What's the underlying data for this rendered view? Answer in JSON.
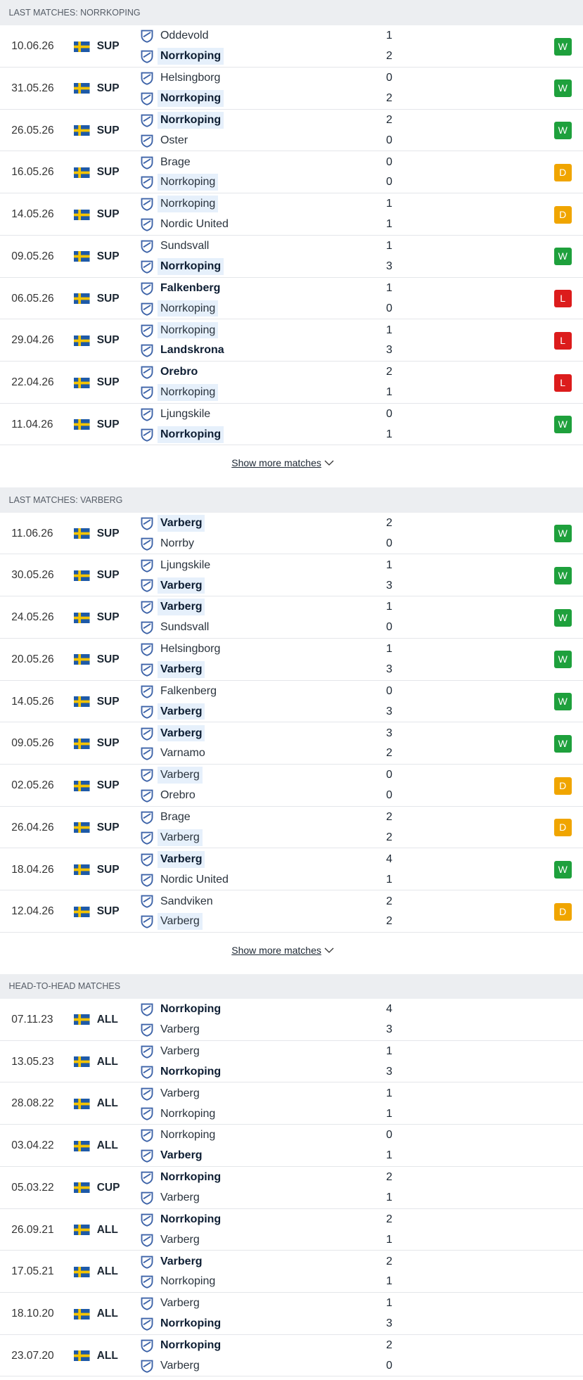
{
  "result_colors": {
    "W": "#1ea03c",
    "D": "#f0a500",
    "L": "#dc1c1c"
  },
  "sections": [
    {
      "title": "LAST MATCHES: NORRKOPING",
      "show_more": "Show more matches",
      "matches": [
        {
          "date": "10.06.26",
          "league": "SUP",
          "home": "Oddevold",
          "away": "Norrkoping",
          "home_score": 1,
          "away_score": 2,
          "result": "W",
          "highlight": "away"
        },
        {
          "date": "31.05.26",
          "league": "SUP",
          "home": "Helsingborg",
          "away": "Norrkoping",
          "home_score": 0,
          "away_score": 2,
          "result": "W",
          "highlight": "away"
        },
        {
          "date": "26.05.26",
          "league": "SUP",
          "home": "Norrkoping",
          "away": "Oster",
          "home_score": 2,
          "away_score": 0,
          "result": "W",
          "highlight": "home"
        },
        {
          "date": "16.05.26",
          "league": "SUP",
          "home": "Brage",
          "away": "Norrkoping",
          "home_score": 0,
          "away_score": 0,
          "result": "D",
          "highlight": "away"
        },
        {
          "date": "14.05.26",
          "league": "SUP",
          "home": "Norrkoping",
          "away": "Nordic United",
          "home_score": 1,
          "away_score": 1,
          "result": "D",
          "highlight": "home"
        },
        {
          "date": "09.05.26",
          "league": "SUP",
          "home": "Sundsvall",
          "away": "Norrkoping",
          "home_score": 1,
          "away_score": 3,
          "result": "W",
          "highlight": "away"
        },
        {
          "date": "06.05.26",
          "league": "SUP",
          "home": "Falkenberg",
          "away": "Norrkoping",
          "home_score": 1,
          "away_score": 0,
          "result": "L",
          "highlight": "away"
        },
        {
          "date": "29.04.26",
          "league": "SUP",
          "home": "Norrkoping",
          "away": "Landskrona",
          "home_score": 1,
          "away_score": 3,
          "result": "L",
          "highlight": "home"
        },
        {
          "date": "22.04.26",
          "league": "SUP",
          "home": "Orebro",
          "away": "Norrkoping",
          "home_score": 2,
          "away_score": 1,
          "result": "L",
          "highlight": "away"
        },
        {
          "date": "11.04.26",
          "league": "SUP",
          "home": "Ljungskile",
          "away": "Norrkoping",
          "home_score": 0,
          "away_score": 1,
          "result": "W",
          "highlight": "away"
        }
      ]
    },
    {
      "title": "LAST MATCHES: VARBERG",
      "show_more": "Show more matches",
      "matches": [
        {
          "date": "11.06.26",
          "league": "SUP",
          "home": "Varberg",
          "away": "Norrby",
          "home_score": 2,
          "away_score": 0,
          "result": "W",
          "highlight": "home"
        },
        {
          "date": "30.05.26",
          "league": "SUP",
          "home": "Ljungskile",
          "away": "Varberg",
          "home_score": 1,
          "away_score": 3,
          "result": "W",
          "highlight": "away"
        },
        {
          "date": "24.05.26",
          "league": "SUP",
          "home": "Varberg",
          "away": "Sundsvall",
          "home_score": 1,
          "away_score": 0,
          "result": "W",
          "highlight": "home"
        },
        {
          "date": "20.05.26",
          "league": "SUP",
          "home": "Helsingborg",
          "away": "Varberg",
          "home_score": 1,
          "away_score": 3,
          "result": "W",
          "highlight": "away"
        },
        {
          "date": "14.05.26",
          "league": "SUP",
          "home": "Falkenberg",
          "away": "Varberg",
          "home_score": 0,
          "away_score": 3,
          "result": "W",
          "highlight": "away"
        },
        {
          "date": "09.05.26",
          "league": "SUP",
          "home": "Varberg",
          "away": "Varnamo",
          "home_score": 3,
          "away_score": 2,
          "result": "W",
          "highlight": "home"
        },
        {
          "date": "02.05.26",
          "league": "SUP",
          "home": "Varberg",
          "away": "Orebro",
          "home_score": 0,
          "away_score": 0,
          "result": "D",
          "highlight": "home"
        },
        {
          "date": "26.04.26",
          "league": "SUP",
          "home": "Brage",
          "away": "Varberg",
          "home_score": 2,
          "away_score": 2,
          "result": "D",
          "highlight": "away"
        },
        {
          "date": "18.04.26",
          "league": "SUP",
          "home": "Varberg",
          "away": "Nordic United",
          "home_score": 4,
          "away_score": 1,
          "result": "W",
          "highlight": "home"
        },
        {
          "date": "12.04.26",
          "league": "SUP",
          "home": "Sandviken",
          "away": "Varberg",
          "home_score": 2,
          "away_score": 2,
          "result": "D",
          "highlight": "away"
        }
      ]
    },
    {
      "title": "HEAD-TO-HEAD MATCHES",
      "matches": [
        {
          "date": "07.11.23",
          "league": "ALL",
          "home": "Norrkoping",
          "away": "Varberg",
          "home_score": 4,
          "away_score": 3
        },
        {
          "date": "13.05.23",
          "league": "ALL",
          "home": "Varberg",
          "away": "Norrkoping",
          "home_score": 1,
          "away_score": 3
        },
        {
          "date": "28.08.22",
          "league": "ALL",
          "home": "Varberg",
          "away": "Norrkoping",
          "home_score": 1,
          "away_score": 1
        },
        {
          "date": "03.04.22",
          "league": "ALL",
          "home": "Norrkoping",
          "away": "Varberg",
          "home_score": 0,
          "away_score": 1
        },
        {
          "date": "05.03.22",
          "league": "CUP",
          "home": "Norrkoping",
          "away": "Varberg",
          "home_score": 2,
          "away_score": 1
        },
        {
          "date": "26.09.21",
          "league": "ALL",
          "home": "Norrkoping",
          "away": "Varberg",
          "home_score": 2,
          "away_score": 1
        },
        {
          "date": "17.05.21",
          "league": "ALL",
          "home": "Varberg",
          "away": "Norrkoping",
          "home_score": 2,
          "away_score": 1
        },
        {
          "date": "18.10.20",
          "league": "ALL",
          "home": "Varberg",
          "away": "Norrkoping",
          "home_score": 1,
          "away_score": 3
        },
        {
          "date": "23.07.20",
          "league": "ALL",
          "home": "Norrkoping",
          "away": "Varberg",
          "home_score": 2,
          "away_score": 0
        }
      ]
    }
  ]
}
